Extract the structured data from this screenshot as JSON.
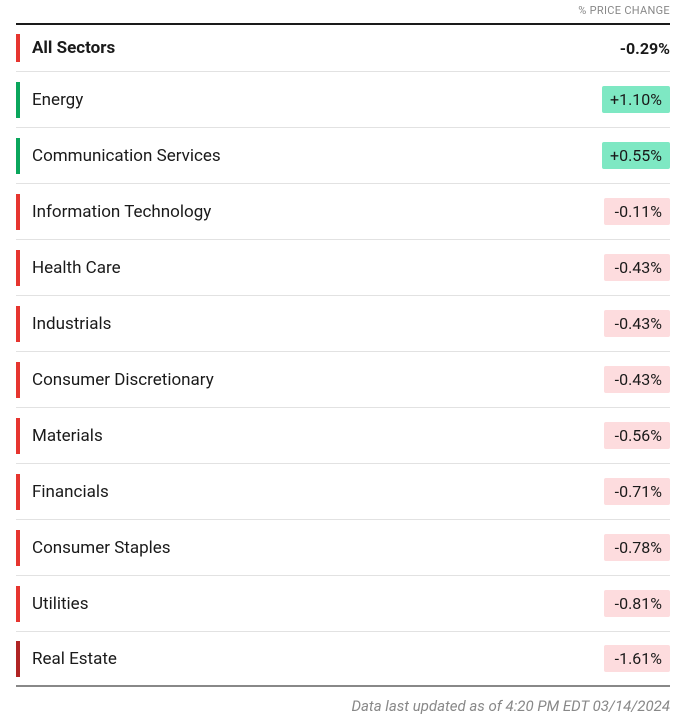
{
  "header": {
    "column_label": "% PRICE CHANGE"
  },
  "colors": {
    "positive_indicator": "#0aa65c",
    "negative_indicator": "#e6352f",
    "dark_negative_indicator": "#b02424",
    "positive_bg": "#7ee8c3",
    "negative_bg": "#fddcde",
    "text": "#1a1a1a"
  },
  "summary": {
    "label": "All Sectors",
    "value": -0.29,
    "display": "-0.29%"
  },
  "sectors": [
    {
      "label": "Energy",
      "value": 1.1,
      "display": "+1.10%"
    },
    {
      "label": "Communication Services",
      "value": 0.55,
      "display": "+0.55%"
    },
    {
      "label": "Information Technology",
      "value": -0.11,
      "display": "-0.11%"
    },
    {
      "label": "Health Care",
      "value": -0.43,
      "display": "-0.43%"
    },
    {
      "label": "Industrials",
      "value": -0.43,
      "display": "-0.43%"
    },
    {
      "label": "Consumer Discretionary",
      "value": -0.43,
      "display": "-0.43%"
    },
    {
      "label": "Materials",
      "value": -0.56,
      "display": "-0.56%"
    },
    {
      "label": "Financials",
      "value": -0.71,
      "display": "-0.71%"
    },
    {
      "label": "Consumer Staples",
      "value": -0.78,
      "display": "-0.78%"
    },
    {
      "label": "Utilities",
      "value": -0.81,
      "display": "-0.81%"
    },
    {
      "label": "Real Estate",
      "value": -1.61,
      "display": "-1.61%"
    }
  ],
  "footer": {
    "text": "Data last updated as of 4:20 PM EDT 03/14/2024"
  }
}
